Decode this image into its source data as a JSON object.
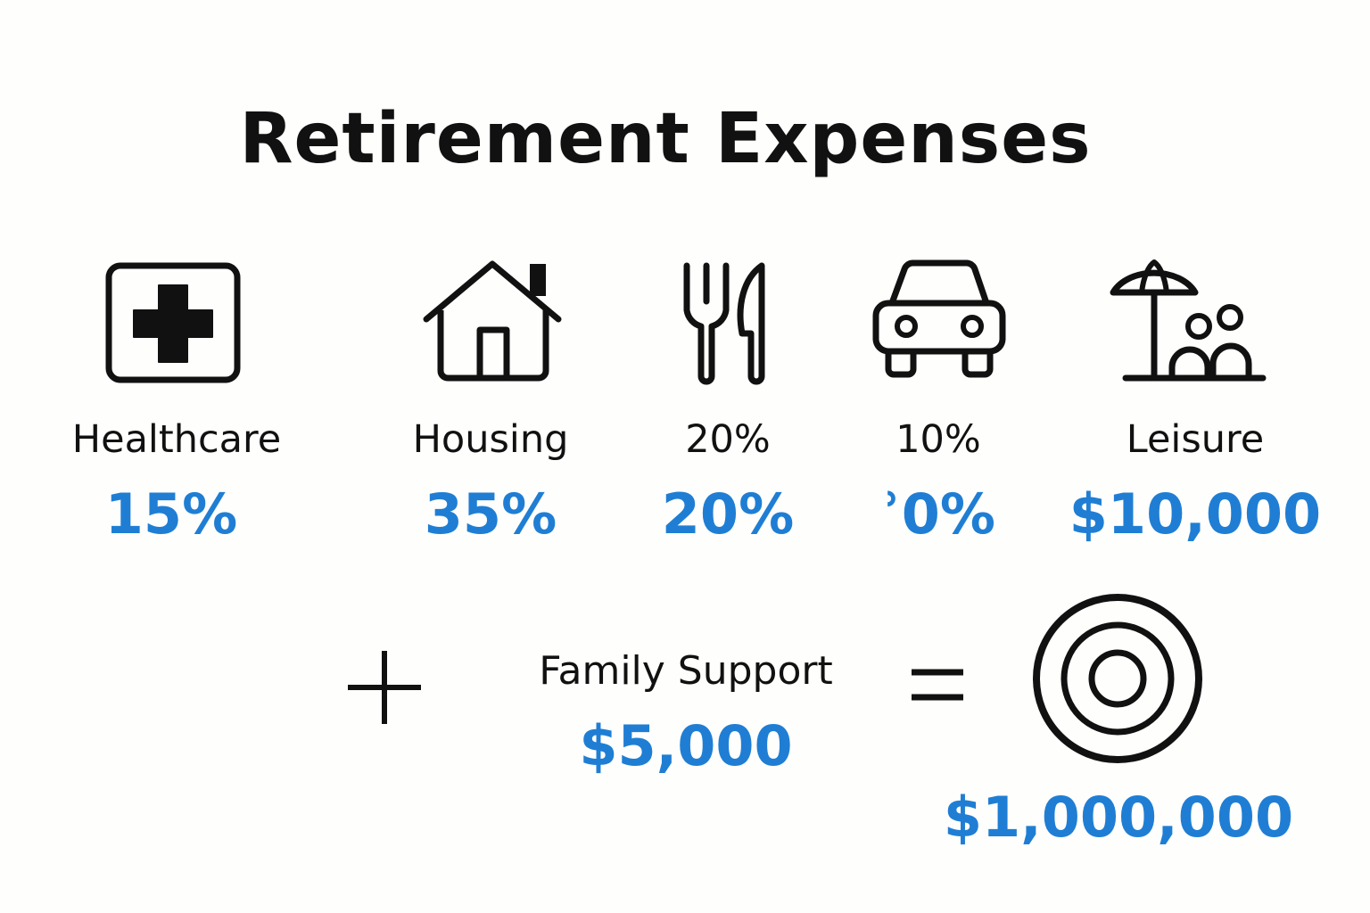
{
  "title": "Retirement Expenses",
  "accent_color": "#1f7ed4",
  "categories": [
    {
      "icon": "medical-cross-icon",
      "label": "Healthcare",
      "value": "15%"
    },
    {
      "icon": "house-icon",
      "label": "Housing",
      "value": "35%"
    },
    {
      "icon": "fork-knife-icon",
      "label": "20%",
      "value": "20%"
    },
    {
      "icon": "car-icon",
      "label": "10%",
      "value": "ʾ0%"
    },
    {
      "icon": "beach-umbrella-family-icon",
      "label": "Leisure",
      "value": "$10,000"
    }
  ],
  "plus_icon": "plus-icon",
  "family_support": {
    "label": "Family Support",
    "value": "$5,000"
  },
  "equals_icon": "equals-icon",
  "total": {
    "icon": "target-icon",
    "value": "$1,000,000"
  }
}
